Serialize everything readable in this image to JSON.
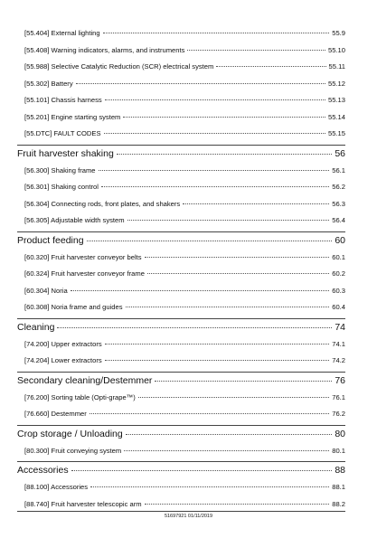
{
  "top_entries": [
    {
      "label": "[55.404] External lighting",
      "page": "55.9"
    },
    {
      "label": "[55.408] Warning indicators, alarms, and instruments",
      "page": "55.10"
    },
    {
      "label": "[55.988] Selective Catalytic Reduction (SCR) electrical system",
      "page": "55.11"
    },
    {
      "label": "[55.302] Battery",
      "page": "55.12"
    },
    {
      "label": "[55.101] Chassis harness",
      "page": "55.13"
    },
    {
      "label": "[55.201] Engine starting system",
      "page": "55.14"
    },
    {
      "label": "[55.DTC] FAULT CODES",
      "page": "55.15"
    }
  ],
  "sections": [
    {
      "title": "Fruit harvester shaking",
      "page": "56",
      "entries": [
        {
          "label": "[56.300] Shaking frame",
          "page": "56.1"
        },
        {
          "label": "[56.301] Shaking control",
          "page": "56.2"
        },
        {
          "label": "[56.304] Connecting rods, front plates, and shakers",
          "page": "56.3"
        },
        {
          "label": "[56.305] Adjustable width system",
          "page": "56.4"
        }
      ]
    },
    {
      "title": "Product feeding",
      "page": "60",
      "entries": [
        {
          "label": "[60.320] Fruit harvester conveyor belts",
          "page": "60.1"
        },
        {
          "label": "[60.324] Fruit harvester conveyor frame",
          "page": "60.2"
        },
        {
          "label": "[60.304] Noria",
          "page": "60.3"
        },
        {
          "label": "[60.308] Noria frame and guides",
          "page": "60.4"
        }
      ]
    },
    {
      "title": "Cleaning",
      "page": "74",
      "entries": [
        {
          "label": "[74.200] Upper extractors",
          "page": "74.1"
        },
        {
          "label": "[74.204] Lower extractors",
          "page": "74.2"
        }
      ]
    },
    {
      "title": "Secondary cleaning/Destemmer",
      "page": "76",
      "entries": [
        {
          "label": "[76.200] Sorting table (Opti-grape™)",
          "page": "76.1"
        },
        {
          "label": "[76.660] Destemmer",
          "page": "76.2"
        }
      ]
    },
    {
      "title": "Crop storage / Unloading",
      "page": "80",
      "entries": [
        {
          "label": "[80.300] Fruit conveying system",
          "page": "80.1"
        }
      ]
    },
    {
      "title": "Accessories",
      "page": "88",
      "entries": [
        {
          "label": "[88.100] Accessories",
          "page": "88.1"
        },
        {
          "label": "[88.740] Fruit harvester telescopic arm",
          "page": "88.2"
        }
      ]
    }
  ],
  "footer": "51697921 01/11/2019"
}
